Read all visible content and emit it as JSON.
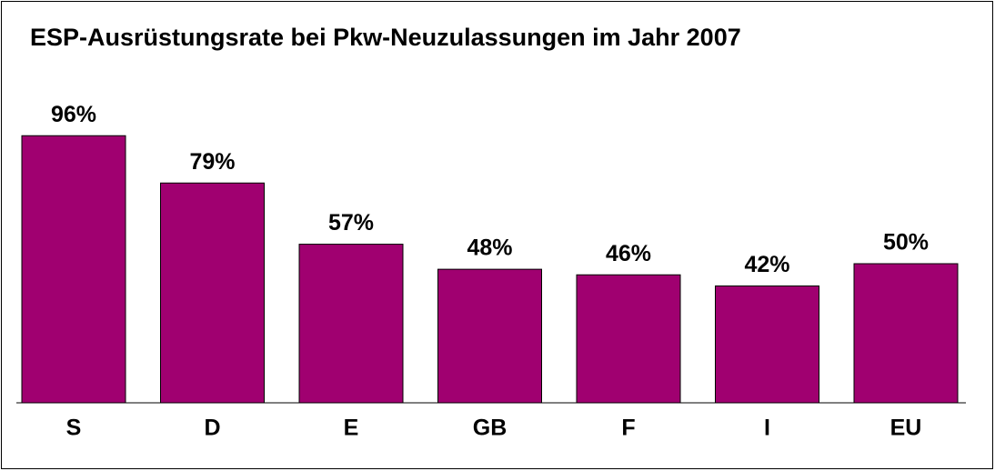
{
  "chart_data": {
    "type": "bar",
    "title": "ESP-Ausrüstungsrate bei Pkw-Neuzulassungen im Jahr 2007",
    "categories": [
      "S",
      "D",
      "E",
      "GB",
      "F",
      "I",
      "EU"
    ],
    "values": [
      96,
      79,
      57,
      48,
      46,
      42,
      50
    ],
    "value_labels": [
      "96%",
      "79%",
      "57%",
      "48%",
      "46%",
      "42%",
      "50%"
    ],
    "color": "#a00070"
  }
}
